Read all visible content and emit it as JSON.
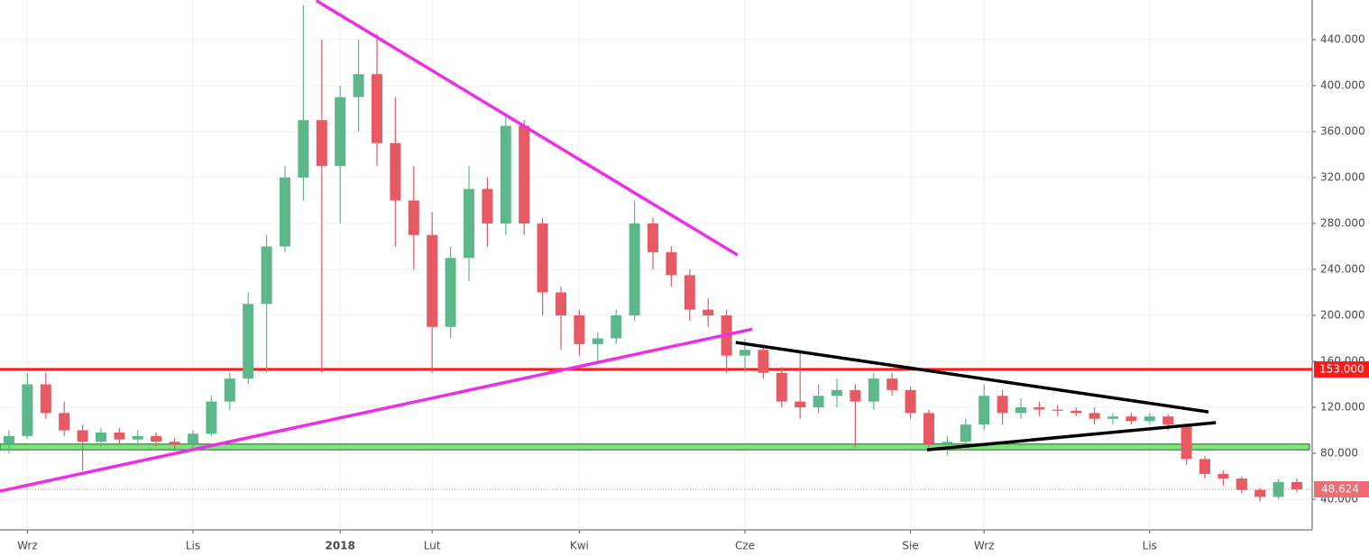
{
  "chart_data": {
    "type": "candlestick",
    "categories": [
      null,
      "Wrz",
      null,
      null,
      null,
      null,
      null,
      null,
      null,
      null,
      "Lis",
      null,
      null,
      null,
      null,
      null,
      null,
      null,
      "2018",
      null,
      null,
      null,
      null,
      "Lut",
      null,
      null,
      null,
      null,
      null,
      null,
      null,
      "Kwi",
      null,
      null,
      null,
      null,
      null,
      null,
      null,
      null,
      "Cze",
      null,
      null,
      null,
      null,
      null,
      null,
      null,
      null,
      "Sie",
      null,
      null,
      null,
      "Wrz",
      null,
      null,
      null,
      null,
      null,
      null,
      null,
      null,
      "Lis",
      null,
      null,
      null,
      null,
      null,
      null,
      null,
      null
    ],
    "open": [
      88,
      95,
      140,
      115,
      100,
      90,
      98,
      92,
      95,
      90,
      88,
      97,
      125,
      145,
      210,
      260,
      320,
      370,
      330,
      390,
      410,
      350,
      300,
      270,
      190,
      250,
      310,
      280,
      365,
      280,
      220,
      200,
      175,
      180,
      200,
      280,
      255,
      235,
      205,
      200,
      165,
      170,
      150,
      125,
      120,
      130,
      135,
      125,
      145,
      135,
      115,
      88,
      90,
      105,
      130,
      115,
      120,
      118,
      117,
      115,
      110,
      112,
      108,
      112,
      105,
      75,
      62,
      58,
      48,
      42,
      55
    ],
    "high": [
      100,
      150,
      150,
      125,
      105,
      102,
      102,
      100,
      98,
      93,
      100,
      130,
      150,
      220,
      270,
      330,
      470,
      440,
      400,
      440,
      445,
      390,
      330,
      290,
      260,
      330,
      320,
      375,
      370,
      285,
      225,
      205,
      185,
      205,
      300,
      285,
      260,
      240,
      215,
      205,
      180,
      175,
      155,
      170,
      140,
      145,
      140,
      150,
      150,
      138,
      118,
      95,
      110,
      140,
      135,
      128,
      125,
      122,
      120,
      120,
      115,
      115,
      115,
      114,
      106,
      78,
      65,
      60,
      50,
      58,
      58
    ],
    "low": [
      80,
      93,
      110,
      95,
      65,
      85,
      88,
      86,
      86,
      82,
      83,
      95,
      118,
      140,
      150,
      255,
      300,
      150,
      280,
      360,
      330,
      260,
      240,
      150,
      180,
      230,
      260,
      270,
      270,
      200,
      170,
      165,
      160,
      175,
      195,
      240,
      225,
      195,
      190,
      150,
      150,
      145,
      120,
      110,
      115,
      120,
      85,
      118,
      130,
      110,
      85,
      78,
      88,
      100,
      105,
      110,
      112,
      112,
      112,
      105,
      105,
      105,
      105,
      100,
      70,
      58,
      52,
      45,
      38,
      40,
      46
    ],
    "close": [
      95,
      140,
      115,
      100,
      90,
      98,
      92,
      95,
      90,
      88,
      97,
      125,
      145,
      210,
      260,
      320,
      370,
      330,
      390,
      410,
      350,
      300,
      270,
      190,
      250,
      310,
      280,
      365,
      280,
      220,
      200,
      175,
      180,
      200,
      280,
      255,
      235,
      205,
      200,
      165,
      170,
      150,
      125,
      120,
      130,
      135,
      125,
      145,
      135,
      115,
      88,
      90,
      105,
      130,
      115,
      120,
      118,
      117,
      115,
      110,
      112,
      108,
      112,
      105,
      75,
      62,
      58,
      48,
      42,
      55,
      48.624
    ],
    "up_color": "#5cb88b",
    "down_color": "#e85a63",
    "ylim": [
      13.33,
      474.51
    ],
    "yticks": [
      {
        "value": 40,
        "label": "40.000"
      },
      {
        "value": 80,
        "label": "80.000"
      },
      {
        "value": 120,
        "label": "120.000"
      },
      {
        "value": 160,
        "label": "160.000"
      },
      {
        "value": 200,
        "label": "200.000"
      },
      {
        "value": 240,
        "label": "240.000"
      },
      {
        "value": 280,
        "label": "280.000"
      },
      {
        "value": 320,
        "label": "320.000"
      },
      {
        "value": 360,
        "label": "360.000"
      },
      {
        "value": 400,
        "label": "400.000"
      },
      {
        "value": 440,
        "label": "440.000"
      }
    ],
    "grid": true,
    "levels": [
      {
        "value": 153,
        "label": "153.000",
        "color": "#ff1a1a"
      }
    ],
    "zones": [
      {
        "from": 83,
        "to": 88,
        "color": "#7ee37e"
      }
    ],
    "trendlines": [
      {
        "color": "#ee2ee6",
        "x": [
          16.7,
          39.6
        ],
        "y": [
          474,
          252.5
        ]
      },
      {
        "color": "#ee2ee6",
        "x": [
          -0.5,
          40.4
        ],
        "y": [
          47,
          188
        ]
      },
      {
        "color": "#000000",
        "x": [
          39.5,
          65.2
        ],
        "y": [
          176.5,
          116
        ]
      },
      {
        "color": "#000000",
        "x": [
          49.9,
          65.6
        ],
        "y": [
          83,
          106.7
        ]
      }
    ],
    "last_color": "#f06c74"
  }
}
